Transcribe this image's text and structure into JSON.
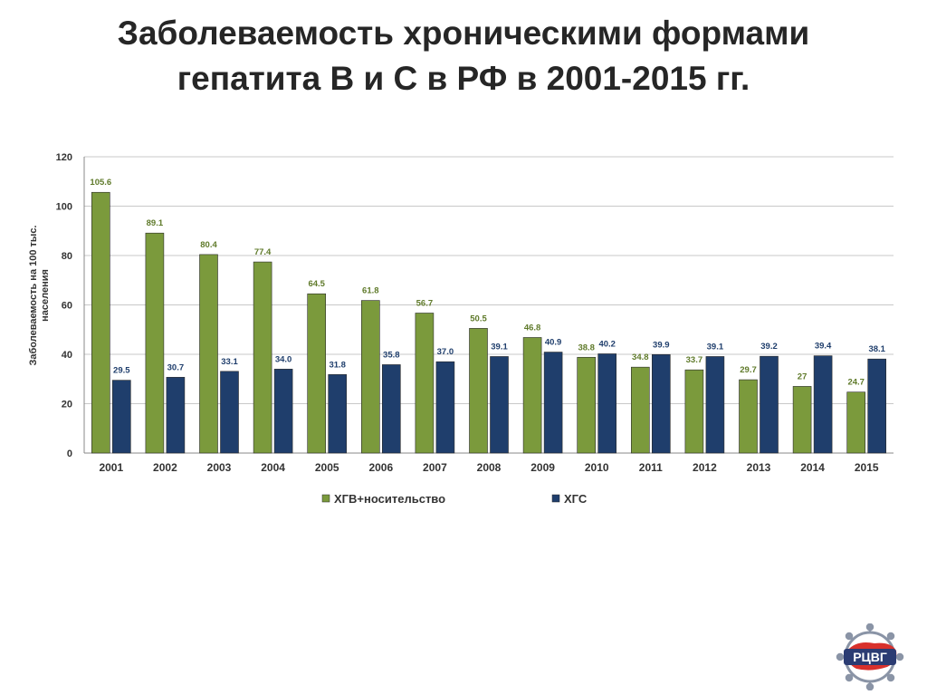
{
  "slide": {
    "title_line1": "Заболеваемость хроническими формами",
    "title_line2": "гепатита В и С в РФ в 2001-2015 гг."
  },
  "logo": {
    "text": "РЦВГ"
  },
  "colors": {
    "green": "#7b9a3c",
    "blue": "#1f3e6c",
    "green_label": "#5f7a2a",
    "blue_label": "#1f3e6c"
  },
  "chart_data": {
    "type": "bar",
    "categories": [
      "2001",
      "2002",
      "2003",
      "2004",
      "2005",
      "2006",
      "2007",
      "2008",
      "2009",
      "2010",
      "2011",
      "2012",
      "2013",
      "2014",
      "2015"
    ],
    "series": [
      {
        "name": "ХГВ+носительство",
        "color": "#7b9a3c",
        "values": [
          105.6,
          89.1,
          80.4,
          77.4,
          64.5,
          61.8,
          56.7,
          50.5,
          46.8,
          38.8,
          34.8,
          33.7,
          29.7,
          27,
          24.7
        ],
        "labels": [
          "105.6",
          "89.1",
          "80.4",
          "77.4",
          "64.5",
          "61.8",
          "56.7",
          "50.5",
          "46.8",
          "38.8",
          "34.8",
          "33.7",
          "29.7",
          "27",
          "24.7"
        ]
      },
      {
        "name": "ХГС",
        "color": "#1f3e6c",
        "values": [
          29.5,
          30.7,
          33.1,
          34.0,
          31.8,
          35.8,
          37.0,
          39.1,
          40.9,
          40.2,
          39.9,
          39.1,
          39.2,
          39.4,
          38.1
        ],
        "labels": [
          "29.5",
          "30.7",
          "33.1",
          "34.0",
          "31.8",
          "35.8",
          "37.0",
          "39.1",
          "40.9",
          "40.2",
          "39.9",
          "39.1",
          "39.2",
          "39.4",
          "38.1"
        ]
      }
    ],
    "ylabel": "Заболеваемость на 100 тыс. населения",
    "xlabel": "",
    "ylim": [
      0,
      120
    ],
    "yticks": [
      "0",
      "20",
      "40",
      "60",
      "80",
      "100",
      "120"
    ],
    "grid": true,
    "legend_position": "bottom"
  }
}
